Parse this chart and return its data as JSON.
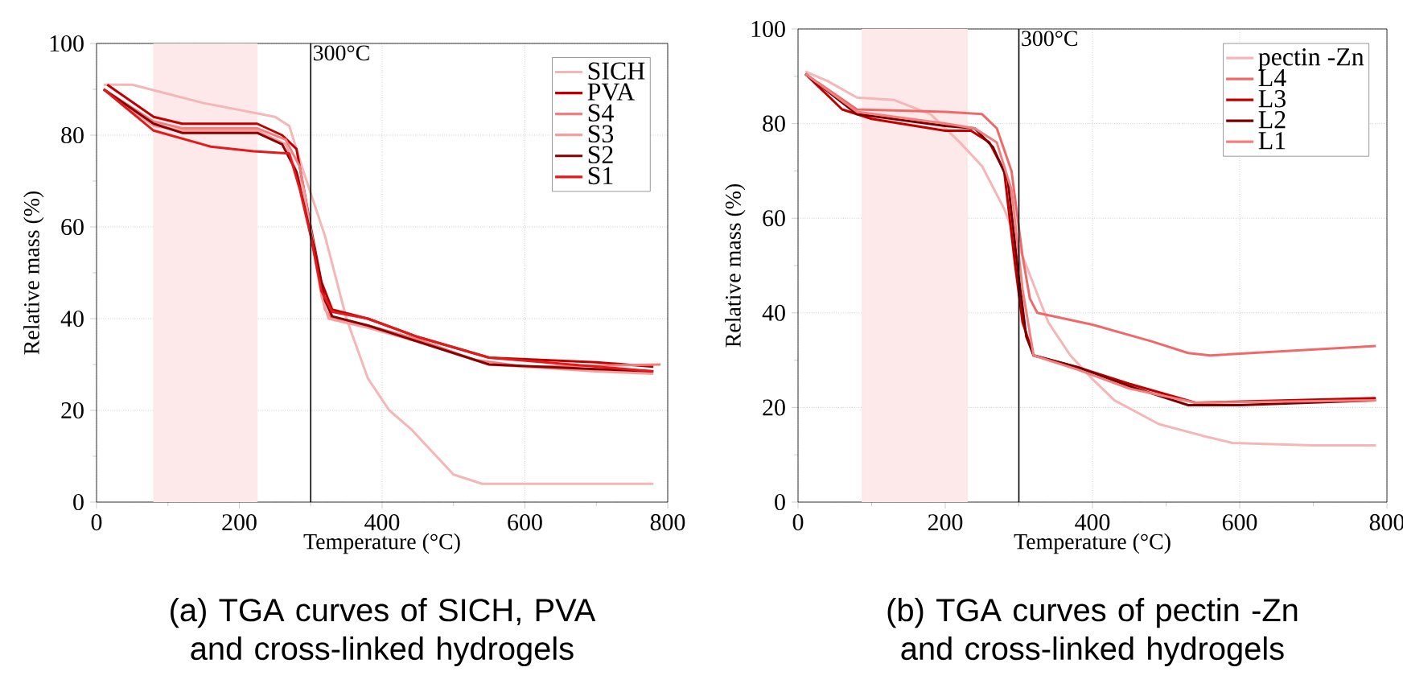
{
  "chart_data": [
    {
      "type": "line",
      "title": "(a) TGA curves of SICH, PVA and cross-linked hydrogels",
      "xlabel": "Temperature (°C)",
      "ylabel": "Relative mass (%)",
      "xlim": [
        0,
        800
      ],
      "ylim": [
        0,
        100
      ],
      "xticks": [
        0,
        200,
        400,
        600,
        800
      ],
      "yticks": [
        0,
        20,
        40,
        60,
        80,
        100
      ],
      "grid": true,
      "legend": "top right",
      "line_style": "solid",
      "ref_lines": [
        {
          "axis": "x",
          "value": 300,
          "label": "300°C",
          "color": "#000000"
        }
      ],
      "bands": [
        {
          "axis": "x",
          "from": 80,
          "to": 225,
          "color": "#fde9e9"
        }
      ],
      "series": [
        {
          "name": "SICH",
          "color": "#f4b6b6",
          "x": [
            10,
            50,
            100,
            150,
            200,
            250,
            270,
            290,
            320,
            350,
            380,
            410,
            440,
            470,
            500,
            540,
            600,
            700,
            780
          ],
          "values": [
            91,
            91,
            89,
            87,
            85.5,
            84,
            82,
            72,
            58,
            40,
            27,
            20,
            16,
            11,
            6,
            4,
            4,
            4,
            4
          ]
        },
        {
          "name": "PVA",
          "color": "#c00000",
          "x": [
            15,
            80,
            120,
            160,
            225,
            260,
            280,
            300,
            315,
            330,
            380,
            450,
            550,
            700,
            780
          ],
          "values": [
            91,
            84,
            82.5,
            82.5,
            82.5,
            80,
            77,
            60,
            48,
            42,
            40,
            36,
            31.5,
            30.5,
            29.5
          ]
        },
        {
          "name": "S4",
          "color": "#f08080",
          "x": [
            10,
            80,
            120,
            225,
            265,
            285,
            305,
            320,
            330,
            380,
            450,
            530,
            600,
            790
          ],
          "values": [
            90,
            83,
            81.5,
            81.5,
            79,
            73,
            55,
            42,
            40,
            38.5,
            35.5,
            31,
            29.5,
            30
          ]
        },
        {
          "name": "S3",
          "color": "#f4a0a0",
          "x": [
            10,
            80,
            120,
            225,
            265,
            290,
            315,
            325,
            380,
            450,
            550,
            700,
            780
          ],
          "values": [
            90,
            82,
            81,
            81,
            78,
            68,
            45,
            40,
            38,
            35,
            30,
            28.5,
            28
          ]
        },
        {
          "name": "S2",
          "color": "#8b0000",
          "x": [
            10,
            80,
            120,
            225,
            260,
            280,
            305,
            320,
            330,
            380,
            450,
            550,
            700,
            780
          ],
          "values": [
            90,
            82.5,
            80.5,
            80.5,
            78,
            72,
            55,
            44,
            40.5,
            38.5,
            35,
            30,
            29,
            28.5
          ]
        },
        {
          "name": "S1",
          "color": "#e31a1c",
          "x": [
            10,
            80,
            160,
            220,
            270,
            285,
            300,
            315,
            330,
            380,
            450,
            550,
            780
          ],
          "values": [
            90,
            81,
            77.5,
            76.5,
            76,
            68,
            58,
            46,
            41.5,
            40,
            36,
            31.5,
            28.5
          ]
        }
      ]
    },
    {
      "type": "line",
      "title": "(b) TGA curves of pectin -Zn and cross-linked hydrogels",
      "xlabel": "Temperature (°C)",
      "ylabel": "Relative mass (%)",
      "xlim": [
        0,
        800
      ],
      "ylim": [
        0,
        100
      ],
      "xticks": [
        0,
        200,
        400,
        600,
        800
      ],
      "yticks": [
        0,
        20,
        40,
        60,
        80,
        100
      ],
      "grid": true,
      "legend": "top right",
      "line_style": "solid",
      "ref_lines": [
        {
          "axis": "x",
          "value": 300,
          "label": "300°C",
          "color": "#000000"
        }
      ],
      "bands": [
        {
          "axis": "x",
          "from": 87,
          "to": 230,
          "color": "#fde9e9"
        }
      ],
      "series": [
        {
          "name": "pectin -Zn",
          "color": "#f4b6b6",
          "x": [
            10,
            40,
            80,
            130,
            180,
            220,
            250,
            280,
            310,
            340,
            370,
            400,
            430,
            490,
            550,
            590,
            700,
            785
          ],
          "values": [
            91,
            89,
            85.5,
            85,
            82,
            76,
            71,
            62,
            50,
            38,
            31,
            26,
            21.5,
            16.5,
            14,
            12.5,
            12,
            12
          ]
        },
        {
          "name": "L4",
          "color": "#ee6a6a",
          "x": [
            10,
            80,
            200,
            250,
            270,
            290,
            305,
            315,
            325,
            400,
            480,
            530,
            560,
            785
          ],
          "values": [
            90.5,
            83,
            82.5,
            82,
            79,
            70,
            52,
            43,
            40,
            37.5,
            34,
            31.5,
            31,
            33
          ]
        },
        {
          "name": "L3",
          "color": "#c00000",
          "x": [
            10,
            60,
            100,
            200,
            235,
            260,
            280,
            295,
            305,
            320,
            380,
            450,
            540,
            785
          ],
          "values": [
            90.5,
            83,
            81,
            78.5,
            78.5,
            76,
            70,
            50,
            38,
            31,
            28.5,
            25,
            21,
            22
          ]
        },
        {
          "name": "L2",
          "color": "#7a0000",
          "x": [
            10,
            80,
            200,
            240,
            265,
            285,
            298,
            310,
            320,
            380,
            450,
            530,
            600,
            785
          ],
          "values": [
            90.5,
            82,
            79.5,
            79,
            75,
            68,
            50,
            35,
            31,
            28.5,
            24.5,
            20.5,
            20.5,
            21.5
          ]
        },
        {
          "name": "L1",
          "color": "#f08080",
          "x": [
            10,
            80,
            200,
            240,
            270,
            290,
            305,
            320,
            380,
            450,
            540,
            785
          ],
          "values": [
            90.5,
            82.5,
            80,
            79,
            76,
            66,
            45,
            31,
            28,
            24,
            21,
            21.5
          ]
        }
      ]
    }
  ]
}
